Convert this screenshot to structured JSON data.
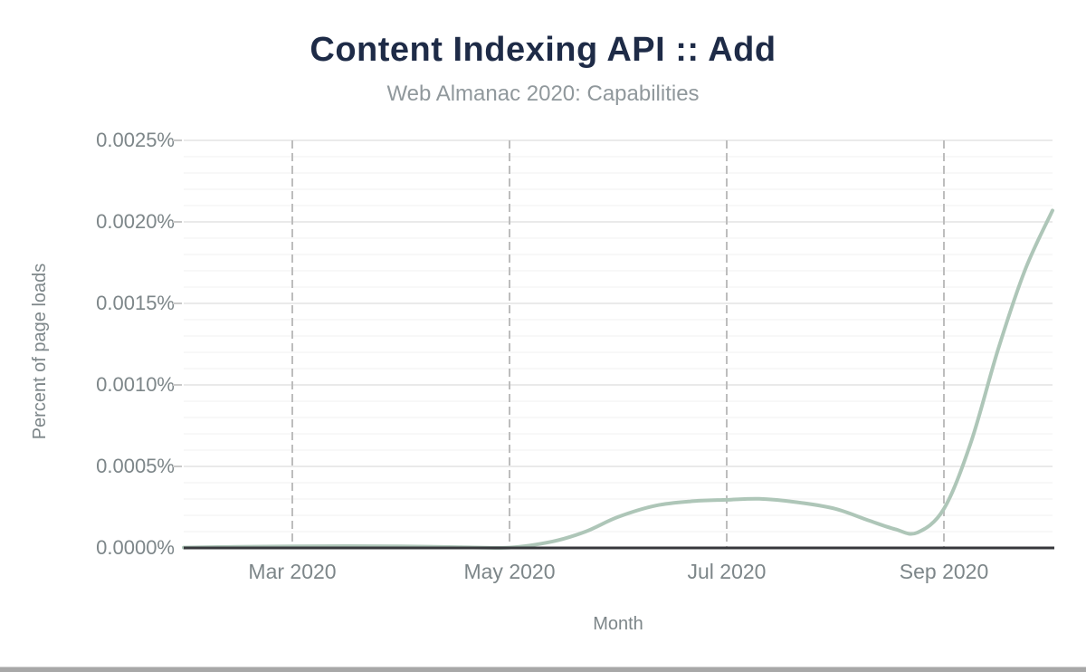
{
  "chart_data": {
    "type": "line",
    "title": "Content Indexing API :: Add",
    "subtitle": "Web Almanac 2020: Capabilities",
    "xlabel": "Month",
    "ylabel": "Percent of page loads",
    "x_tick_labels": [
      "Mar 2020",
      "May 2020",
      "Jul 2020",
      "Sep 2020"
    ],
    "y_tick_labels": [
      "0.0025%",
      "0.0020%",
      "0.0015%",
      "0.0010%",
      "0.0005%",
      "0.0000%"
    ],
    "ylim_percent": [
      0,
      0.0025
    ],
    "y_major_step_percent": 0.0005,
    "y_minor_step_percent": 0.0001,
    "x_domain": {
      "start": "Feb 2020",
      "end": "Oct 2020",
      "months_shown": 8
    },
    "x_tick_month_offsets": [
      1,
      3,
      5,
      7
    ],
    "grid": {
      "horizontal_minor": true,
      "vertical_dashed_at_ticks": true
    },
    "legend": "none",
    "series": [
      {
        "name": "Content Indexing API :: Add",
        "unit": "percent of page loads",
        "points_month_percent": [
          [
            0,
            2e-06
          ],
          [
            0.5,
            7e-06
          ],
          [
            1,
            1e-05
          ],
          [
            1.5,
            1.1e-05
          ],
          [
            2,
            1e-05
          ],
          [
            2.5,
            5e-06
          ],
          [
            3,
            2e-06
          ],
          [
            3.4,
            4e-05
          ],
          [
            3.7,
            0.0001
          ],
          [
            4,
            0.00019
          ],
          [
            4.35,
            0.00026
          ],
          [
            4.7,
            0.000287
          ],
          [
            5,
            0.000295
          ],
          [
            5.3,
            0.000301
          ],
          [
            5.65,
            0.00028
          ],
          [
            6,
            0.00024
          ],
          [
            6.3,
            0.00017
          ],
          [
            6.55,
            0.000115
          ],
          [
            6.75,
            9.3e-05
          ],
          [
            7,
            0.00024
          ],
          [
            7.25,
            0.00065
          ],
          [
            7.5,
            0.00122
          ],
          [
            7.75,
            0.00171
          ],
          [
            8,
            0.00207
          ]
        ]
      }
    ]
  },
  "colors": {
    "title": "#1e2b47",
    "subtitle": "#90989c",
    "axis_text": "#7d8689",
    "line": "#aec6b8",
    "axis_line": "#37383c",
    "grid_minor": "#f4f4f4",
    "grid_major": "#eaeaea",
    "grid_vertical_dashed": "#bdbdbd",
    "scrollbar": "#a8a8a8"
  }
}
